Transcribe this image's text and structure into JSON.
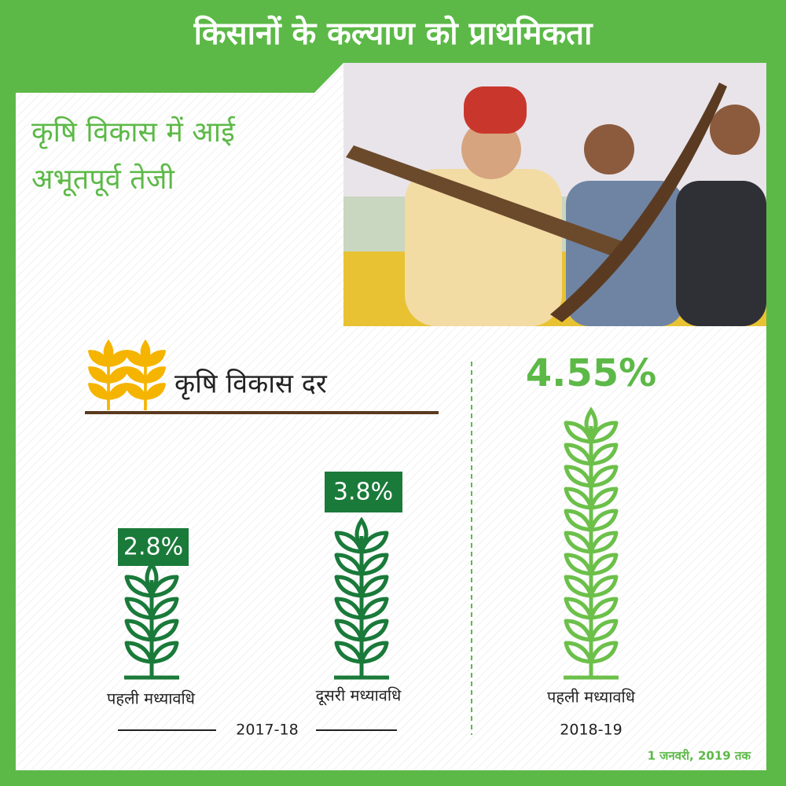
{
  "header": {
    "title": "किसानों के कल्याण को प्राथमिकता"
  },
  "subtitle": [
    "कृषि विकास में आई",
    "अभूतपूर्व तेजी"
  ],
  "section": {
    "title": "कृषि विकास दर"
  },
  "items": [
    {
      "value": "2.8%",
      "label": "पहली मध्यावधि"
    },
    {
      "value": "3.8%",
      "label": "दूसरी मध्यावधि"
    },
    {
      "value": "4.55%",
      "label": "पहली मध्यावधि"
    }
  ],
  "years": [
    "2017-18",
    "2018-19"
  ],
  "footnote": "1 जनवरी, 2019 तक"
}
